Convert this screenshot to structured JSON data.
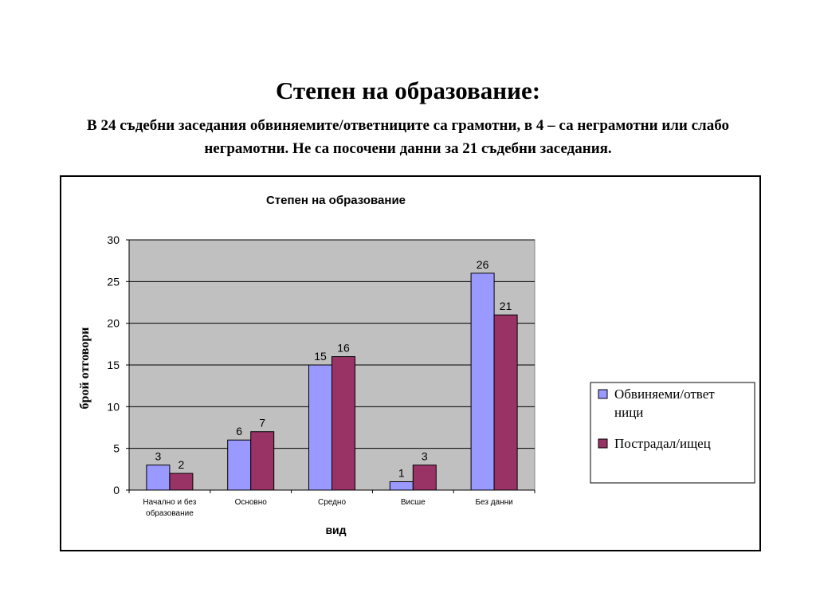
{
  "slide": {
    "title": "Степен на образование:",
    "subtitle": "В 24 съдебни заседания обвиняемите/ответниците са грамотни, в 4 – са неграмотни или слабо неграмотни. Не са посочени данни за 21 съдебни заседания."
  },
  "chart_data": {
    "type": "bar",
    "title": "Степен на образование",
    "xlabel": "вид",
    "ylabel": "брой отговори",
    "categories": [
      [
        "Начално и без",
        "образование"
      ],
      [
        "Основно"
      ],
      [
        "Средно"
      ],
      [
        "Висше"
      ],
      [
        "Без данни"
      ]
    ],
    "series": [
      {
        "name": "Обвиняеми/ответници",
        "legend_lines": [
          "Обвиняеми/ответ",
          "ници"
        ],
        "values": [
          3,
          6,
          15,
          1,
          26
        ],
        "color": "#9999FF"
      },
      {
        "name": "Пострадал/ищец",
        "legend_lines": [
          "Пострадал/ищец"
        ],
        "values": [
          2,
          7,
          16,
          3,
          21
        ],
        "color": "#993366"
      }
    ],
    "ylim": [
      0,
      30
    ],
    "yticks": [
      0,
      5,
      10,
      15,
      20,
      25,
      30
    ],
    "grid": true,
    "plot_background": "#C0C0C0",
    "legend_position": "right"
  }
}
